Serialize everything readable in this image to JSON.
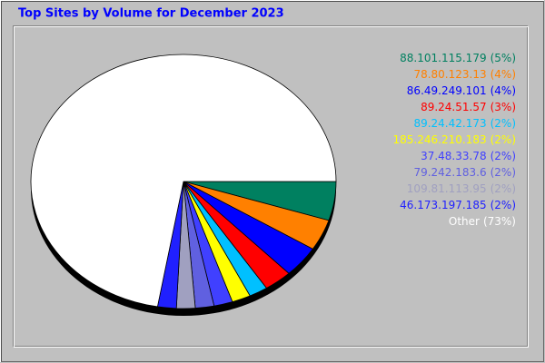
{
  "chart_data": {
    "type": "pie",
    "title": "Top Sites by Volume for December 2023",
    "categories": [
      "88.101.115.179",
      "78.80.123.13",
      "86.49.249.101",
      "89.24.51.57",
      "89.24.42.173",
      "185.246.210.183",
      "37.48.33.78",
      "79.242.183.6",
      "109.81.113.95",
      "46.173.197.185",
      "Other"
    ],
    "values": [
      5,
      4,
      4,
      3,
      2,
      2,
      2,
      2,
      2,
      2,
      73
    ],
    "value_labels": [
      "(5%)",
      "(4%)",
      "(4%)",
      "(3%)",
      "(2%)",
      "(2%)",
      "(2%)",
      "(2%)",
      "(2%)",
      "(2%)",
      "(73%)"
    ],
    "colors": [
      "#008060",
      "#ff8000",
      "#0000ff",
      "#ff0000",
      "#00c0ff",
      "#ffff00",
      "#4040ff",
      "#6060e0",
      "#a0a0c0",
      "#2020ff",
      "#ffffff"
    ]
  }
}
